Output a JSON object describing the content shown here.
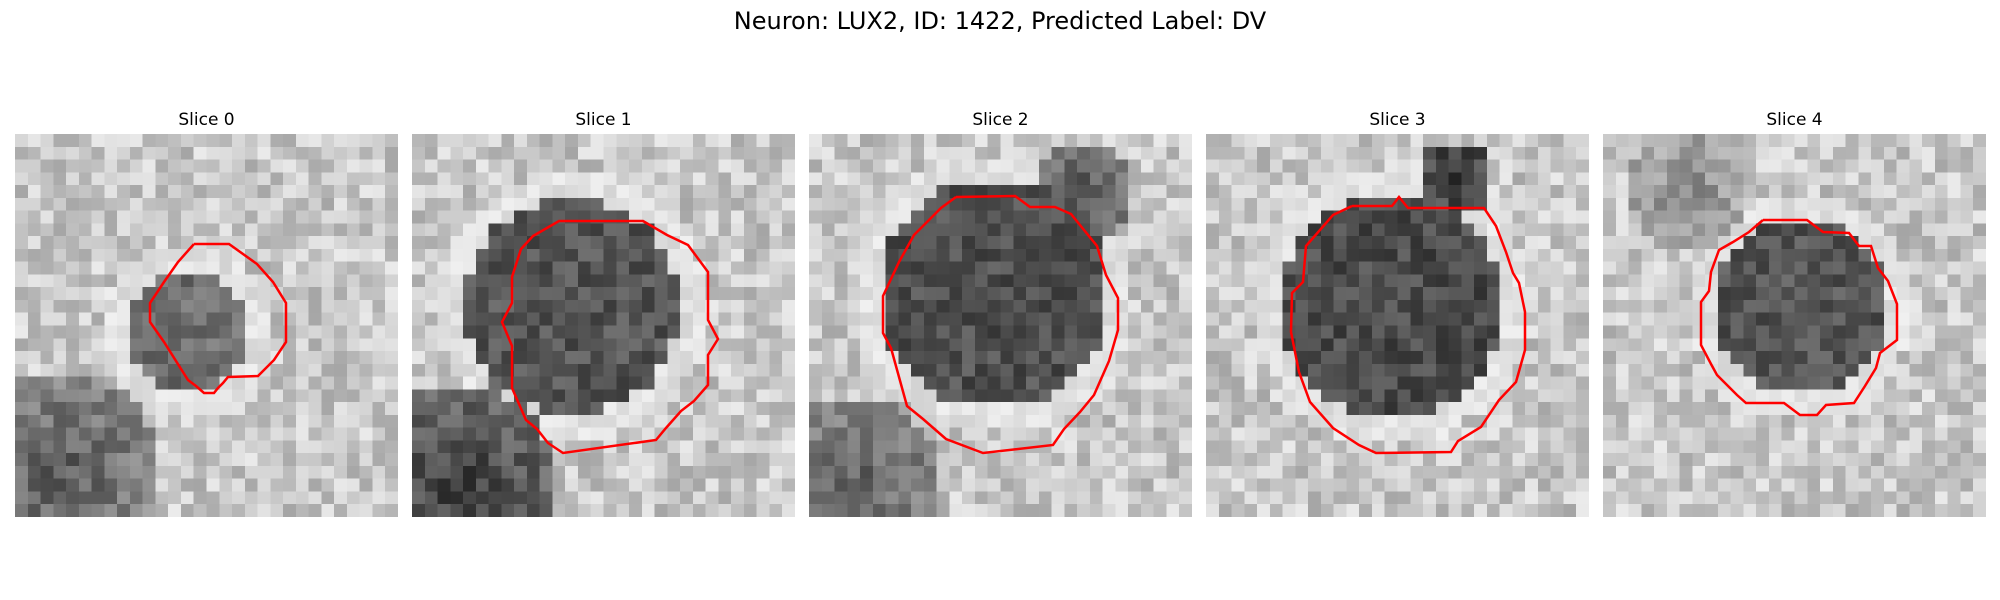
{
  "figure": {
    "title": "Neuron: LUX2, ID: 1422, Predicted Label: DV"
  },
  "colors": {
    "contour": "#ff0000",
    "background": "#ffffff"
  },
  "slices": [
    {
      "title": "Slice 0"
    },
    {
      "title": "Slice 1"
    },
    {
      "title": "Slice 2"
    },
    {
      "title": "Slice 3"
    },
    {
      "title": "Slice 4"
    }
  ]
}
